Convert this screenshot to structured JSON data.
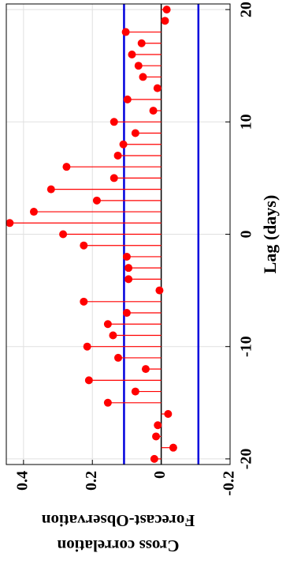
{
  "chart_data": {
    "type": "stem",
    "xlabel": "Lag (days)",
    "ylabel": [
      "Cross correlation",
      "Forecast-Observation"
    ],
    "x": [
      -20,
      -19,
      -18,
      -17,
      -16,
      -15,
      -14,
      -13,
      -12,
      -11,
      -10,
      -9,
      -8,
      -7,
      -6,
      -5,
      -4,
      -3,
      -2,
      -1,
      0,
      1,
      2,
      3,
      4,
      5,
      6,
      7,
      8,
      9,
      10,
      11,
      12,
      13,
      14,
      15,
      16,
      17,
      18,
      19,
      20
    ],
    "values": [
      0.02,
      -0.035,
      0.015,
      0.01,
      -0.02,
      0.155,
      0.075,
      0.21,
      0.045,
      0.125,
      0.215,
      0.14,
      0.155,
      0.1,
      0.225,
      0.005,
      0.095,
      0.095,
      0.1,
      0.225,
      0.285,
      0.44,
      0.37,
      0.187,
      0.32,
      0.137,
      0.275,
      0.126,
      0.11,
      0.075,
      0.137,
      0.023,
      0.098,
      0.011,
      0.053,
      0.066,
      0.085,
      0.057,
      0.103,
      -0.011,
      -0.016
    ],
    "color": "#ff0000",
    "bounds": [
      -0.108,
      0.108
    ],
    "bounds_color": "#0000dd",
    "xlim": [
      -20.5,
      20.5
    ],
    "ylim": [
      -0.2,
      0.45
    ],
    "xticks": [
      -20,
      -10,
      0,
      10,
      20
    ],
    "yticks": [
      -0.2,
      0,
      0.2,
      0.4
    ],
    "grid": true
  }
}
